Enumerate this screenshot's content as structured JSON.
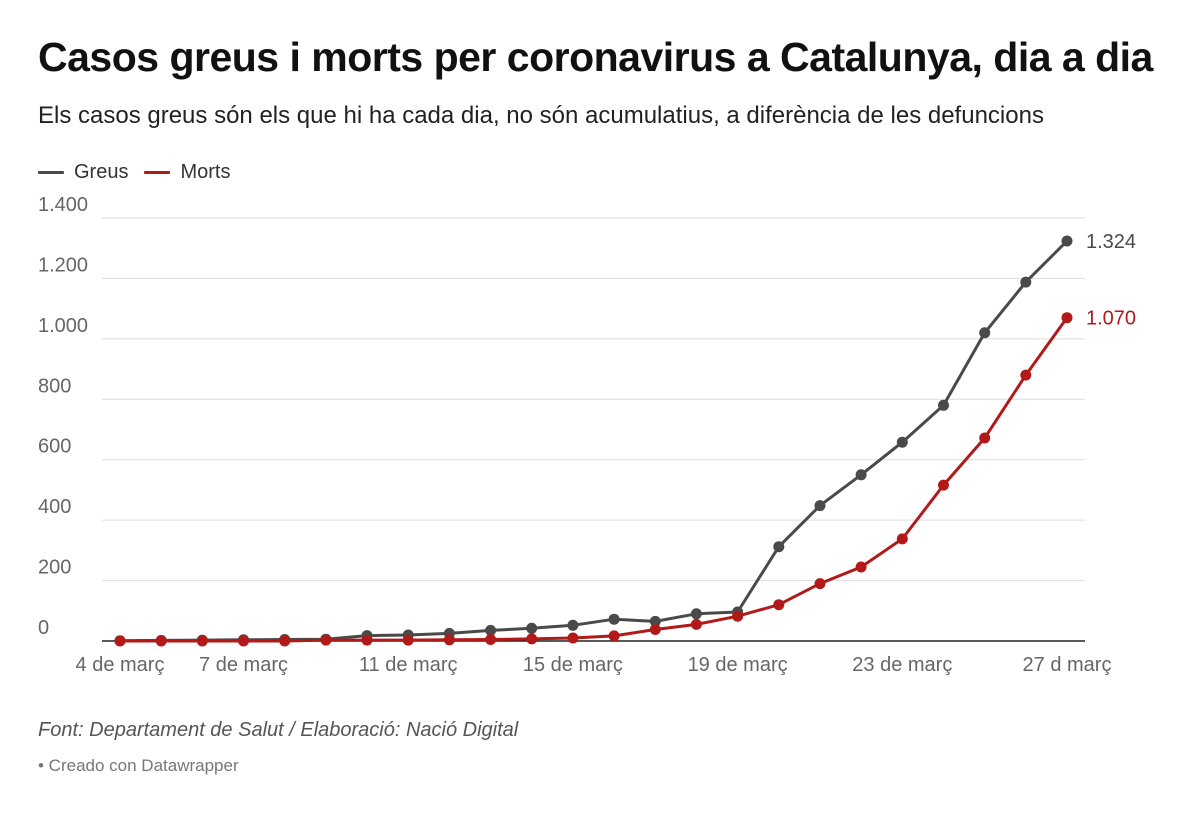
{
  "colors": {
    "greus": "#4a4a4a",
    "morts": "#b21a1a",
    "grid": "#dddddd",
    "axis_text": "#666666"
  },
  "chart_data": {
    "type": "line",
    "title": "Casos greus i morts per coronavirus a Catalunya, dia a dia",
    "subtitle": "Els casos greus són els que hi ha cada dia, no són acumulatius, a diferència de les defuncions",
    "x_tick_labels": [
      "4 de març",
      "7 de març",
      "11 de març",
      "15 de març",
      "19 de març",
      "23 de març",
      "27 d març"
    ],
    "x_tick_days": [
      4,
      7,
      11,
      15,
      19,
      23,
      27
    ],
    "x_day_range": [
      4,
      27
    ],
    "y_ticks": [
      0,
      200,
      400,
      600,
      800,
      1000,
      1200,
      1400
    ],
    "y_tick_labels": [
      "0",
      "200",
      "400",
      "600",
      "800",
      "1.000",
      "1.200",
      "1.400"
    ],
    "ylim": [
      0,
      1400
    ],
    "grid": true,
    "legend_placement": "top-left",
    "x_days": [
      4,
      5,
      6,
      7,
      8,
      9,
      10,
      11,
      12,
      13,
      14,
      15,
      16,
      17,
      18,
      19,
      20,
      21,
      22,
      23,
      24,
      25,
      26,
      27
    ],
    "series": [
      {
        "name": "Greus",
        "color_key": "greus",
        "end_label": "1.324",
        "values": [
          1,
          2,
          3,
          4,
          5,
          6,
          18,
          20,
          25,
          35,
          42,
          52,
          72,
          65,
          90,
          96,
          312,
          448,
          550,
          658,
          780,
          1020,
          1188,
          1324
        ]
      },
      {
        "name": "Morts",
        "color_key": "morts",
        "end_label": "1.070",
        "values": [
          0,
          0,
          0,
          0,
          0,
          3,
          3,
          3,
          4,
          5,
          7,
          10,
          17,
          38,
          55,
          82,
          120,
          190,
          245,
          338,
          516,
          672,
          880,
          1070
        ]
      }
    ]
  },
  "footer": {
    "source": "Font: Departament de Salut / Elaboració: Nació Digital",
    "credit": "• Creado con Datawrapper"
  }
}
